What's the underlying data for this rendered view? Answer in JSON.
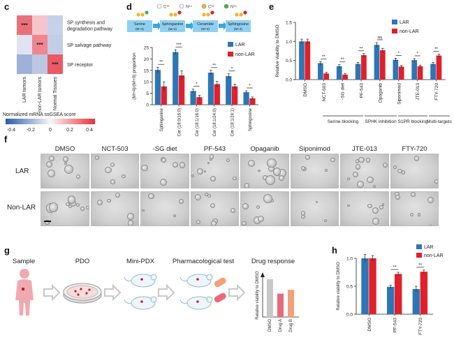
{
  "panel_labels": {
    "c": "c",
    "d": "d",
    "e": "e",
    "f": "f",
    "g": "g",
    "h": "h"
  },
  "panel_c": {
    "rows": [
      "SP synthesis and degradation pathway",
      "SP salvage pathway",
      "SP receptor"
    ],
    "row_lines": [
      [
        "SP synthesis and",
        "degradation pathway"
      ],
      [
        "SP salvage pathway"
      ],
      [
        "SP receptor"
      ]
    ],
    "columns": [
      "LAR tumors",
      "non-LAR tumors",
      "Normal Tissues"
    ],
    "marks": [
      [
        "***",
        "",
        ""
      ],
      [
        "",
        "***",
        ""
      ],
      [
        "",
        "",
        "***"
      ]
    ],
    "colorbar_title": "Normalized mRNA ssGSEA score",
    "colorbar_ticks": [
      "-0.4",
      "-0.2",
      "0",
      "0.2",
      "0.4"
    ],
    "colors": {
      "low": "#2b5ca8",
      "mid": "#f7f7f7",
      "high": "#e8323c"
    }
  },
  "panel_d_pathway": {
    "legend": [
      "C¹²",
      "N¹⁴",
      "C¹³",
      "N¹⁵"
    ],
    "nodes": [
      [
        "Serine",
        "(M+4)"
      ],
      [
        "Sphinganine",
        "(M+4)"
      ],
      [
        "Ceramide",
        "(M+4)"
      ],
      [
        "Sphingosine",
        "(M+4)"
      ]
    ]
  },
  "panel_e_groups": [
    "Serine blocking",
    "SPHK inhibition",
    "S1PR blocking",
    "Multi-targets"
  ],
  "panel_f": {
    "columns": [
      "DMSO",
      "NCT-503",
      "-SG diet",
      "PF-543",
      "Opaganib",
      "Siponimod",
      "JTE-013",
      "FTY-720"
    ],
    "rows": [
      "LAR",
      "Non-LAR"
    ]
  },
  "panel_g": {
    "steps": [
      "Sample",
      "PDO",
      "Mini-PDX",
      "Pharmacological test",
      "Drug response"
    ],
    "mini_ylabel": "Relative viability to DMSO",
    "mini_categories": [
      "DMSO",
      "Drug A",
      "Drug B"
    ],
    "mini_values": [
      1.0,
      0.62,
      0.72
    ],
    "mini_colors": [
      "#c8c8c8",
      "#e86a7a",
      "#f2a27a"
    ]
  },
  "chart_data": [
    {
      "panel": "d",
      "type": "bar",
      "ylabel": "(M+4)/(M+0) proportion",
      "ylim": [
        0,
        25
      ],
      "yticks": [
        0,
        5,
        10,
        15,
        20,
        25
      ],
      "categories": [
        "Sphinganine",
        "Cer (18:0/16:0)",
        "Cer (18:1/16:0)",
        "Cer (18:1/24:0)",
        "Cer (18:1/24:1)",
        "Sphingosine"
      ],
      "series": [
        {
          "name": "LAR",
          "color": "#2e75b6",
          "values": [
            15.2,
            23.0,
            6.0,
            14.0,
            12.5,
            5.5
          ],
          "errors": [
            1.2,
            1.0,
            0.8,
            1.0,
            1.0,
            0.6
          ]
        },
        {
          "name": "non-LAR",
          "color": "#e0202b",
          "values": [
            8.0,
            12.8,
            3.3,
            9.0,
            8.0,
            2.8
          ],
          "errors": [
            2.0,
            2.0,
            0.8,
            1.2,
            1.0,
            0.6
          ]
        }
      ],
      "significance": [
        "**",
        "***",
        "*",
        "**",
        "*",
        "*"
      ],
      "legend_position": "right"
    },
    {
      "panel": "e",
      "type": "bar",
      "ylabel": "Relative viability to DMSO",
      "ylim": [
        0,
        1.5
      ],
      "yticks": [
        0.0,
        0.5,
        1.0,
        1.5
      ],
      "categories": [
        "DMSO",
        "NCT-503",
        "-SG diet",
        "PF-543",
        "Opaganib",
        "Siponimod",
        "JTE-013",
        "FTY-720"
      ],
      "series": [
        {
          "name": "LAR",
          "color": "#2e75b6",
          "values": [
            1.0,
            0.43,
            0.35,
            0.41,
            0.91,
            0.52,
            0.51,
            0.41
          ],
          "errors": [
            0.06,
            0.04,
            0.04,
            0.04,
            0.06,
            0.04,
            0.04,
            0.04
          ]
        },
        {
          "name": "non-LAR",
          "color": "#e0202b",
          "values": [
            1.0,
            0.16,
            0.13,
            0.64,
            0.77,
            0.34,
            0.35,
            0.63
          ],
          "errors": [
            0.06,
            0.03,
            0.03,
            0.04,
            0.05,
            0.03,
            0.03,
            0.04
          ]
        }
      ],
      "significance": [
        "",
        "**",
        "**",
        "**",
        "ns",
        "*",
        "*",
        "**"
      ],
      "legend_position": "top-right"
    },
    {
      "panel": "h",
      "type": "bar",
      "ylabel": "Relative viability to DMSO",
      "ylim": [
        0,
        1.0
      ],
      "yticks": [
        0.0,
        0.5,
        1.0
      ],
      "categories": [
        "DMSO",
        "PF-543",
        "FTY-720"
      ],
      "series": [
        {
          "name": "LAR",
          "color": "#2e75b6",
          "values": [
            1.0,
            0.49,
            0.45
          ],
          "errors": [
            0.07,
            0.03,
            0.05
          ]
        },
        {
          "name": "non-LAR",
          "color": "#e0202b",
          "values": [
            1.0,
            0.72,
            0.76
          ],
          "errors": [
            0.05,
            0.03,
            0.03
          ]
        }
      ],
      "significance": [
        "",
        "**",
        "**"
      ],
      "legend_position": "top-right"
    }
  ]
}
